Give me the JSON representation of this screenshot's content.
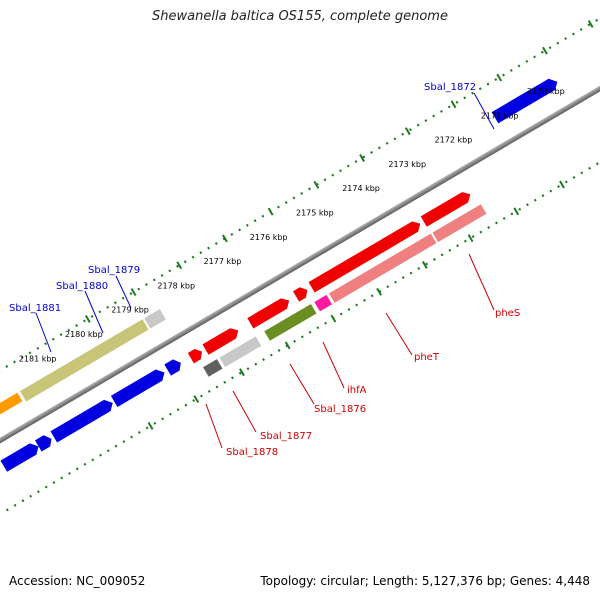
{
  "title": "Shewanella baltica OS155, complete genome",
  "footer": {
    "accession": "Accession: NC_009052",
    "summary": "Topology: circular; Length: 5,127,376 bp; Genes: 4,448"
  },
  "colors": {
    "backbone": "#8a8a8a",
    "ticks": "#1e7a1e",
    "label_blue": "#0000cc",
    "label_red": "#cc0000",
    "gene_blue": "#0000e0",
    "gene_red": "#f00000",
    "gene_pink": "#f08080",
    "gene_magenta": "#ff1aa0",
    "gene_olive": "#c8c478",
    "gene_darkolive": "#6b8e23",
    "gene_gray": "#c8c8c8",
    "gene_darkgray": "#606060",
    "gene_orange": "#ff9a00"
  },
  "kbp_ticks": [
    "2170 kbp",
    "2171 kbp",
    "2172 kbp",
    "2173 kbp",
    "2174 kbp",
    "2175 kbp",
    "2176 kbp",
    "2177 kbp",
    "2178 kbp",
    "2179 kbp",
    "2180 kbp",
    "2181 kbp"
  ],
  "genes_upper": [
    {
      "label": "Sbal_1872",
      "color": "gene_blue",
      "strand": "+"
    },
    {
      "label": "Sbal_1879",
      "color": "gene_blue",
      "strand": "+"
    },
    {
      "label": "Sbal_1880",
      "color": "gene_blue",
      "strand": "+"
    },
    {
      "label": "Sbal_1881",
      "color": "gene_blue",
      "strand": "+"
    }
  ],
  "genes_lower": [
    {
      "label": "pheS",
      "color": "gene_red",
      "strand": "+"
    },
    {
      "label": "pheT",
      "color": "gene_red",
      "strand": "+"
    },
    {
      "label": "ihfA",
      "color": "gene_red",
      "strand": "+"
    },
    {
      "label": "Sbal_1876",
      "color": "gene_red",
      "strand": "+"
    },
    {
      "label": "Sbal_1877",
      "color": "gene_red",
      "strand": "+"
    },
    {
      "label": "Sbal_1878",
      "color": "gene_red",
      "strand": "+"
    }
  ]
}
